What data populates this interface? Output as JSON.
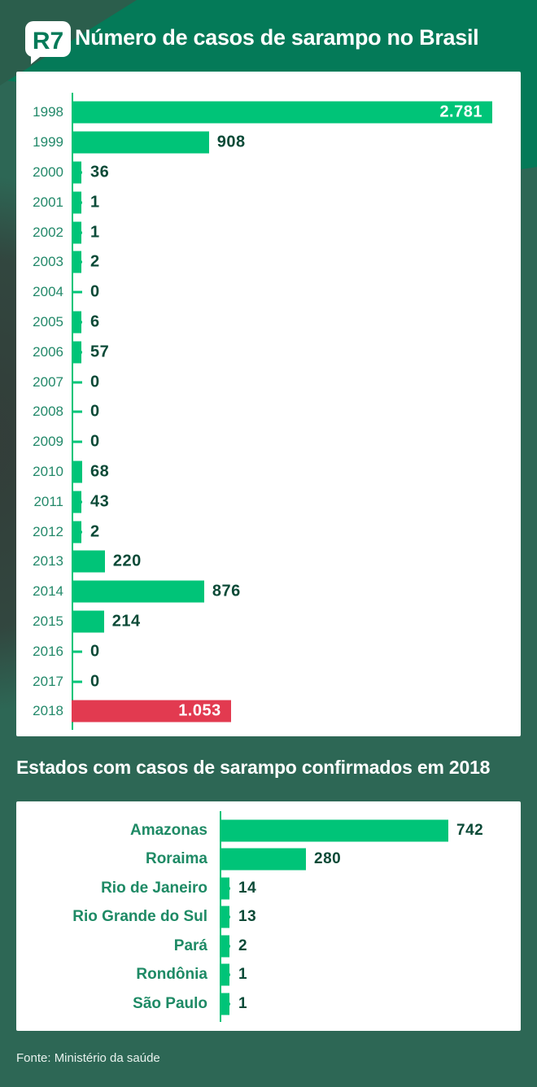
{
  "header": {
    "logo_text": "R7",
    "title": "Número de casos de sarampo no Brasil"
  },
  "section2_title": "Estados com casos de sarampo confirmados em 2018",
  "footer": {
    "source": "Fonte: Ministério da saúde"
  },
  "colors": {
    "bar_green": "#00c478",
    "bar_red": "#e23a50",
    "value_dark_green": "#0b4a37",
    "axis_green": "#00c478",
    "header_green": "#047a58",
    "background_green": "#2d6755"
  },
  "chart_data": [
    {
      "type": "bar",
      "orientation": "horizontal",
      "title": "Número de casos de sarampo no Brasil",
      "xlim": [
        0,
        2781
      ],
      "grid": false,
      "legend": false,
      "categories": [
        "1998",
        "1999",
        "2000",
        "2001",
        "2002",
        "2003",
        "2004",
        "2005",
        "2006",
        "2007",
        "2008",
        "2009",
        "2010",
        "2011",
        "2012",
        "2013",
        "2014",
        "2015",
        "2016",
        "2017",
        "2018"
      ],
      "values": [
        2781,
        908,
        36,
        1,
        1,
        2,
        0,
        6,
        57,
        0,
        0,
        0,
        68,
        43,
        2,
        220,
        876,
        214,
        0,
        0,
        1053
      ],
      "rows": [
        {
          "category": "1998",
          "value": 2781,
          "label": "2.781",
          "label_position": "inside",
          "color": "#00c478"
        },
        {
          "category": "1999",
          "value": 908,
          "label": "908",
          "label_position": "outside",
          "color": "#00c478"
        },
        {
          "category": "2000",
          "value": 36,
          "label": "36",
          "label_position": "outside",
          "color": "#00c478"
        },
        {
          "category": "2001",
          "value": 1,
          "label": "1",
          "label_position": "outside",
          "color": "#00c478"
        },
        {
          "category": "2002",
          "value": 1,
          "label": "1",
          "label_position": "outside",
          "color": "#00c478"
        },
        {
          "category": "2003",
          "value": 2,
          "label": "2",
          "label_position": "outside",
          "color": "#00c478"
        },
        {
          "category": "2004",
          "value": 0,
          "label": "0",
          "label_position": "outside",
          "color": "#00c478"
        },
        {
          "category": "2005",
          "value": 6,
          "label": "6",
          "label_position": "outside",
          "color": "#00c478"
        },
        {
          "category": "2006",
          "value": 57,
          "label": "57",
          "label_position": "outside",
          "color": "#00c478"
        },
        {
          "category": "2007",
          "value": 0,
          "label": "0",
          "label_position": "outside",
          "color": "#00c478"
        },
        {
          "category": "2008",
          "value": 0,
          "label": "0",
          "label_position": "outside",
          "color": "#00c478"
        },
        {
          "category": "2009",
          "value": 0,
          "label": "0",
          "label_position": "outside",
          "color": "#00c478"
        },
        {
          "category": "2010",
          "value": 68,
          "label": "68",
          "label_position": "outside",
          "color": "#00c478"
        },
        {
          "category": "2011",
          "value": 43,
          "label": "43",
          "label_position": "outside",
          "color": "#00c478"
        },
        {
          "category": "2012",
          "value": 2,
          "label": "2",
          "label_position": "outside",
          "color": "#00c478"
        },
        {
          "category": "2013",
          "value": 220,
          "label": "220",
          "label_position": "outside",
          "color": "#00c478"
        },
        {
          "category": "2014",
          "value": 876,
          "label": "876",
          "label_position": "outside",
          "color": "#00c478"
        },
        {
          "category": "2015",
          "value": 214,
          "label": "214",
          "label_position": "outside",
          "color": "#00c478"
        },
        {
          "category": "2016",
          "value": 0,
          "label": "0",
          "label_position": "outside",
          "color": "#00c478"
        },
        {
          "category": "2017",
          "value": 0,
          "label": "0",
          "label_position": "outside",
          "color": "#00c478"
        },
        {
          "category": "2018",
          "value": 1053,
          "label": "1.053",
          "label_position": "inside",
          "color": "#e23a50"
        }
      ]
    },
    {
      "type": "bar",
      "orientation": "horizontal",
      "title": "Estados com casos de sarampo confirmados em 2018",
      "xlim": [
        0,
        742
      ],
      "grid": false,
      "legend": false,
      "categories": [
        "Amazonas",
        "Roraima",
        "Rio de Janeiro",
        "Rio Grande do Sul",
        "Pará",
        "Rondônia",
        "São Paulo"
      ],
      "values": [
        742,
        280,
        14,
        13,
        2,
        1,
        1
      ],
      "rows": [
        {
          "category": "Amazonas",
          "value": 742,
          "label": "742",
          "label_position": "outside",
          "color": "#00c478"
        },
        {
          "category": "Roraima",
          "value": 280,
          "label": "280",
          "label_position": "outside",
          "color": "#00c478"
        },
        {
          "category": "Rio de Janeiro",
          "value": 14,
          "label": "14",
          "label_position": "outside",
          "color": "#00c478"
        },
        {
          "category": "Rio Grande do Sul",
          "value": 13,
          "label": "13",
          "label_position": "outside",
          "color": "#00c478"
        },
        {
          "category": "Pará",
          "value": 2,
          "label": "2",
          "label_position": "outside",
          "color": "#00c478"
        },
        {
          "category": "Rondônia",
          "value": 1,
          "label": "1",
          "label_position": "outside",
          "color": "#00c478"
        },
        {
          "category": "São Paulo",
          "value": 1,
          "label": "1",
          "label_position": "outside",
          "color": "#00c478"
        }
      ]
    }
  ]
}
